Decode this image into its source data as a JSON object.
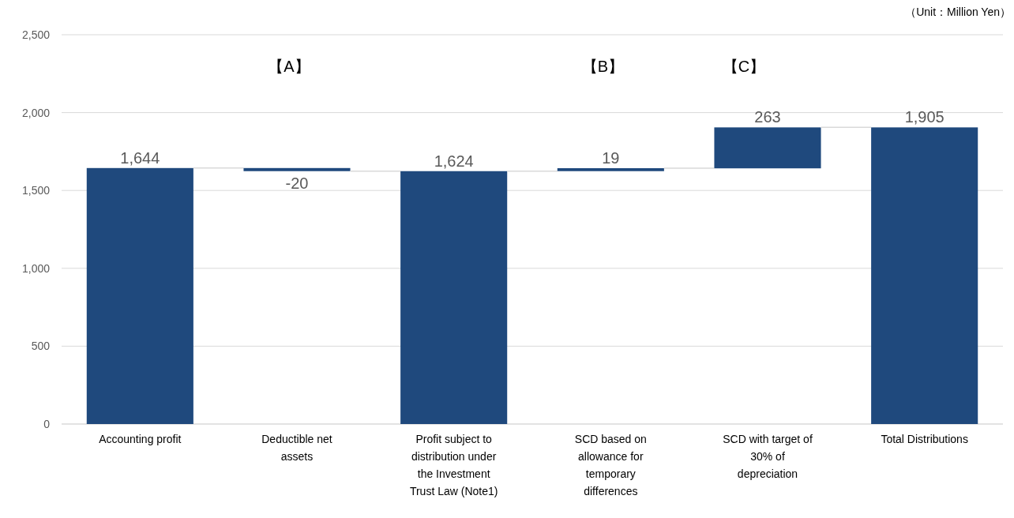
{
  "chart_data": {
    "type": "bar",
    "categories": [
      "Accounting profit",
      "Deductible net assets",
      "Profit subject to distribution under the Investment Trust Law (Note1)",
      "SCD based on allowance for temporary differences",
      "SCD with target of 30% of depreciation",
      "Total Distributions"
    ],
    "values": [
      1644,
      -20,
      1624,
      19,
      263,
      1905
    ],
    "base": [
      0,
      1644,
      0,
      1624,
      1642,
      0
    ],
    "value_labels": [
      "1,644",
      "-20",
      "1,624",
      "19",
      "263",
      "1,905"
    ],
    "color": "#1f497d",
    "ylim": [
      0,
      2500
    ],
    "yticks": [
      0,
      {
        "value": 500,
        "label": "500"
      },
      {
        "value": 1000,
        "label": "1,000"
      },
      {
        "value": 1500,
        "label": "1,500"
      },
      {
        "value": 2000,
        "label": "2,000"
      },
      {
        "value": 2500,
        "label": "2,500"
      }
    ],
    "grid": "y",
    "annotations": [
      "（Unit：Million Yen）",
      "【A】",
      "【B】",
      "【C】"
    ]
  }
}
